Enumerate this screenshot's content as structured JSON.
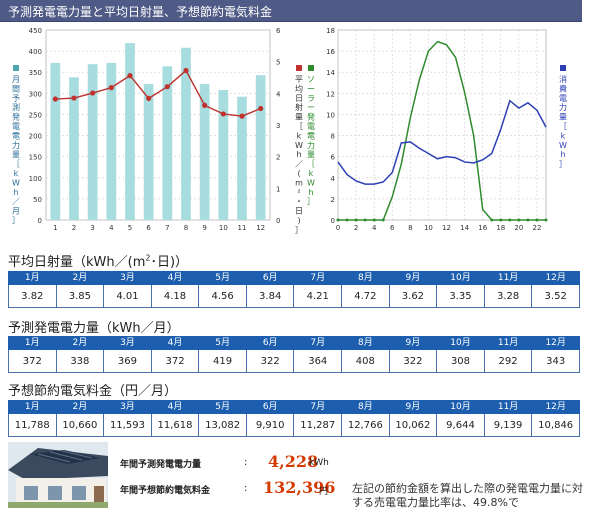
{
  "header": {
    "title": "予測発電電力量と平均日射量、予想節約電気料金"
  },
  "chart_data": [
    {
      "type": "bar",
      "categories": [
        "1",
        "2",
        "3",
        "4",
        "5",
        "6",
        "7",
        "8",
        "9",
        "10",
        "11",
        "12"
      ],
      "series": [
        {
          "name": "月間予測発電電力量［kWh／月］",
          "values": [
            372,
            338,
            369,
            372,
            419,
            322,
            364,
            408,
            322,
            308,
            292,
            343
          ],
          "color": "#a8dde0"
        },
        {
          "name": "平均日射量［kWh／(m²・日)］",
          "values": [
            3.82,
            3.85,
            4.01,
            4.18,
            4.56,
            3.84,
            4.21,
            4.72,
            3.62,
            3.35,
            3.28,
            3.52
          ],
          "color": "#c0322e",
          "axis": "right",
          "type": "line"
        }
      ],
      "left_ticks": [
        "0",
        "50",
        "100",
        "150",
        "200",
        "250",
        "300",
        "350",
        "400",
        "450"
      ],
      "right_ticks": [
        "0",
        "1",
        "2",
        "3",
        "4",
        "5",
        "6"
      ],
      "ylim_left": [
        0,
        450
      ],
      "ylim_right": [
        0,
        6
      ],
      "left_label": "月間予測発電電力量［kWh／月］",
      "right_label": "平均日射量［kWh／(m²・日)］"
    },
    {
      "type": "line",
      "x_ticks": [
        "0",
        "2",
        "4",
        "6",
        "8",
        "10",
        "12",
        "14",
        "16",
        "18",
        "20",
        "22"
      ],
      "left_ticks": [
        "0",
        "2",
        "4",
        "6",
        "8",
        "10",
        "12",
        "14",
        "16",
        "18"
      ],
      "ylim": [
        0,
        18
      ],
      "series": [
        {
          "name": "ソーラー発電電力量［kWh］",
          "color": "#2e8b2e",
          "x": [
            0,
            1,
            2,
            3,
            4,
            5,
            6,
            7,
            8,
            9,
            10,
            11,
            12,
            13,
            14,
            15,
            16,
            17,
            18,
            19,
            20,
            21,
            22,
            23
          ],
          "values": [
            0,
            0,
            0,
            0,
            0,
            0,
            2.2,
            5.3,
            9.7,
            13.3,
            16.0,
            16.9,
            16.6,
            15.4,
            12.1,
            8.0,
            1.0,
            0,
            0,
            0,
            0,
            0,
            0,
            0
          ]
        },
        {
          "name": "消費電力量［kWh］",
          "color": "#2d3fb6",
          "x": [
            0,
            1,
            2,
            3,
            4,
            5,
            6,
            7,
            8,
            9,
            10,
            11,
            12,
            13,
            14,
            15,
            16,
            17,
            18,
            19,
            20,
            21,
            22,
            23
          ],
          "values": [
            5.5,
            4.3,
            3.7,
            3.4,
            3.4,
            3.6,
            4.5,
            7.3,
            7.4,
            6.8,
            6.3,
            5.8,
            6.0,
            5.9,
            5.5,
            5.4,
            5.7,
            6.3,
            8.6,
            11.3,
            10.6,
            11.1,
            10.4,
            8.8
          ]
        }
      ],
      "left_label": "ソーラー発電電力量［kWh］",
      "right_label": "消費電力量［kWh］"
    }
  ],
  "months": [
    "1月",
    "2月",
    "3月",
    "4月",
    "5月",
    "6月",
    "7月",
    "8月",
    "9月",
    "10月",
    "11月",
    "12月"
  ],
  "sections": {
    "radiation": {
      "title_pre": "平均日射量（kWh／(m",
      "title_sup": "2",
      "title_post": "･日)）",
      "values": [
        "3.82",
        "3.85",
        "4.01",
        "4.18",
        "4.56",
        "3.84",
        "4.21",
        "4.72",
        "3.62",
        "3.35",
        "3.28",
        "3.52"
      ]
    },
    "generation": {
      "title": "予測発電電力量（kWh／月）",
      "values": [
        "372",
        "338",
        "369",
        "372",
        "419",
        "322",
        "364",
        "408",
        "322",
        "308",
        "292",
        "343"
      ]
    },
    "savings": {
      "title": "予想節約電気料金（円／月）",
      "values": [
        "11,788",
        "10,660",
        "11,593",
        "11,618",
        "13,082",
        "9,910",
        "11,287",
        "12,766",
        "10,062",
        "9,644",
        "9,139",
        "10,846"
      ]
    }
  },
  "summary": {
    "annual_generation_label": "年間予測発電電力量",
    "annual_generation_value": "4,228",
    "annual_generation_unit": "kWh",
    "annual_savings_label": "年間予想節約電気料金",
    "annual_savings_value": "132,396",
    "annual_savings_unit": "円",
    "colon": ":",
    "note": "左記の節約金額を算出した際の発電電力量に対する売電電力量比率は、49.8%で"
  }
}
